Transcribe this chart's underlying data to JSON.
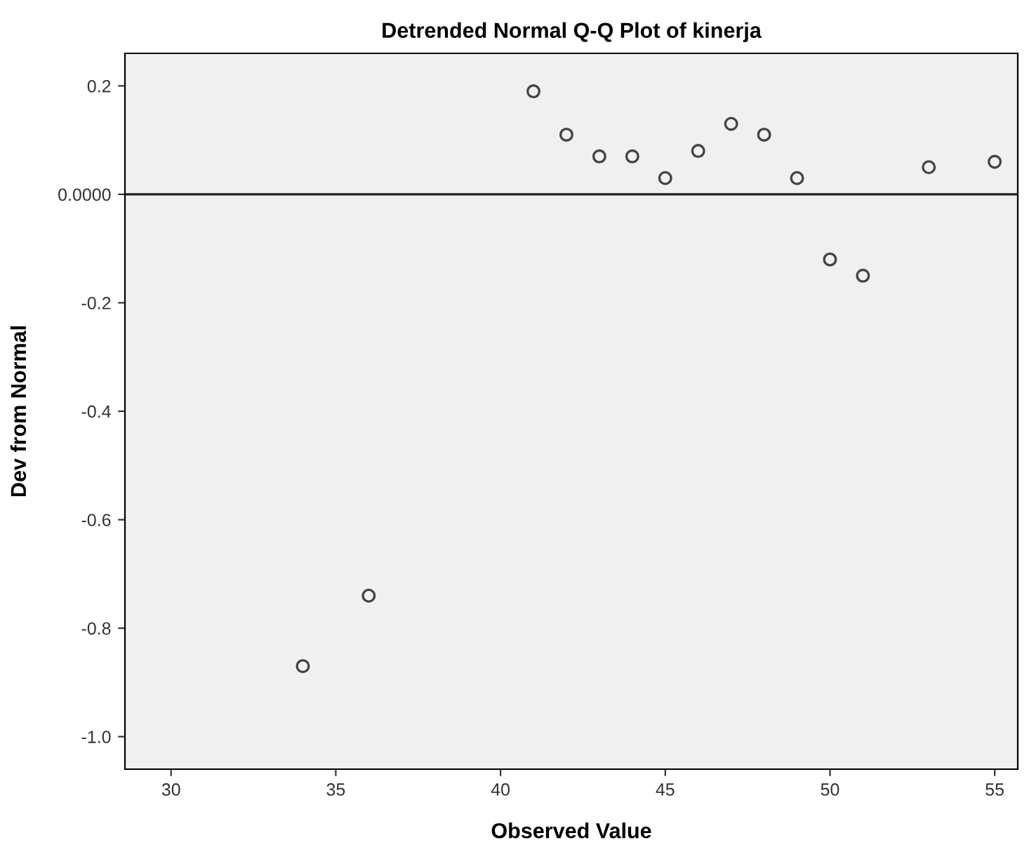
{
  "chart_data": {
    "type": "scatter",
    "title": "Detrended Normal Q-Q Plot of kinerja",
    "xlabel": "Observed Value",
    "ylabel": "Dev from Normal",
    "x": [
      34,
      36,
      41,
      42,
      43,
      44,
      45,
      46,
      47,
      48,
      49,
      50,
      51,
      53,
      55
    ],
    "series": [
      {
        "color": "#444444",
        "values": [
          -0.87,
          -0.74,
          0.19,
          0.11,
          0.07,
          0.07,
          0.03,
          0.08,
          0.13,
          0.11,
          0.03,
          -0.12,
          -0.15,
          0.05,
          0.06
        ]
      }
    ],
    "xlim": [
      28.6,
      55.7
    ],
    "ylim": [
      -1.06,
      0.26
    ],
    "xticks": [
      30,
      35,
      40,
      45,
      50,
      55
    ],
    "yticks": [
      {
        "value": -1.0,
        "label": "-1.0"
      },
      {
        "value": -0.8,
        "label": "-0.8"
      },
      {
        "value": -0.6,
        "label": "-0.6"
      },
      {
        "value": -0.4,
        "label": "-0.4"
      },
      {
        "value": -0.2,
        "label": "-0.2"
      },
      {
        "value": 0,
        "label": "0.0000"
      },
      {
        "value": 0.2,
        "label": "0.2"
      }
    ],
    "ref_lines": [
      {
        "axis": "y",
        "value": 0,
        "color": "#222222"
      }
    ],
    "marker": "circle",
    "grid": false,
    "legend": false
  }
}
